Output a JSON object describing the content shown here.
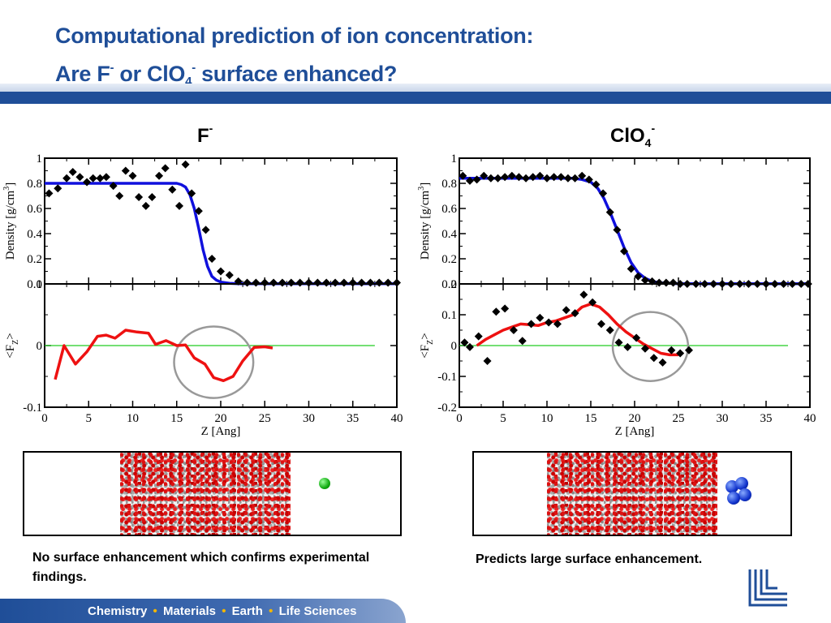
{
  "title": {
    "line1": "Computational prediction of ion concentration:",
    "line2_a": "Are F",
    "line2_sup1": "-",
    "line2_b": " or ClO",
    "line2_sub": "4",
    "line2_sup2": "-",
    "line2_c": " surface enhanced?"
  },
  "left_label": {
    "base": "F",
    "sup": "-"
  },
  "right_label": {
    "base": "ClO",
    "sub": "4",
    "sup": "-"
  },
  "captions": {
    "left": "No surface enhancement which confirms experimental findings.",
    "right": "Predicts large surface enhancement."
  },
  "footer": {
    "items": [
      "Chemistry",
      "Materials",
      "Earth",
      "Life Sciences"
    ],
    "separator": "•"
  },
  "colors": {
    "title": "#1f4e98",
    "band": "#1f4e98",
    "fit_line": "#1010dd",
    "force_line": "#ee1111",
    "zero_line": "#22cc22",
    "circle": "#999999",
    "marker": "#000000",
    "footer_dot": "#f2b600"
  },
  "icons": [
    "llnl-logo",
    "green-ion-sphere",
    "blue-perchlorate-cluster"
  ],
  "chart_data": [
    {
      "type": "scatter",
      "panel": "left-density",
      "ion": "F-",
      "xlabel": "",
      "ylabel": "Density [g/cm3]",
      "ylabel_base": "Density [g/cm",
      "ylabel_sup": "3",
      "ylabel_close": "]",
      "xlim": [
        0,
        40
      ],
      "ylim": [
        0,
        1
      ],
      "yticks": [
        0,
        0.2,
        0.4,
        0.6,
        0.8,
        1
      ],
      "ytick_labels": [
        "0",
        "0.2",
        "0.4",
        "0.6",
        "0.8",
        "1"
      ],
      "series": [
        {
          "kind": "points",
          "x": [
            0.5,
            1.5,
            2.5,
            3.2,
            4,
            4.8,
            5.5,
            6.3,
            7,
            7.8,
            8.5,
            9.2,
            10,
            10.7,
            11.5,
            12.2,
            13,
            13.7,
            14.5,
            15.3,
            16,
            16.7,
            17.5,
            18.3,
            19,
            20,
            21,
            22,
            23,
            24,
            25,
            26,
            27,
            28,
            29,
            30,
            31,
            32,
            33,
            34,
            35,
            36,
            37,
            38,
            39,
            40
          ],
          "y": [
            0.72,
            0.76,
            0.84,
            0.89,
            0.85,
            0.81,
            0.84,
            0.84,
            0.85,
            0.78,
            0.7,
            0.9,
            0.86,
            0.69,
            0.62,
            0.69,
            0.86,
            0.92,
            0.75,
            0.62,
            0.95,
            0.72,
            0.58,
            0.43,
            0.2,
            0.1,
            0.07,
            0.02,
            0.01,
            0.01,
            0.01,
            0.01,
            0.01,
            0.01,
            0.01,
            0.01,
            0.01,
            0.01,
            0.01,
            0.01,
            0.01,
            0.01,
            0.01,
            0.01,
            0.01,
            0.01
          ]
        },
        {
          "kind": "fit",
          "x": [
            0,
            15,
            15.5,
            16,
            16.5,
            17,
            17.5,
            18,
            18.5,
            19,
            19.5,
            20,
            21,
            22,
            25,
            30,
            40
          ],
          "y": [
            0.8,
            0.8,
            0.79,
            0.77,
            0.71,
            0.6,
            0.44,
            0.27,
            0.14,
            0.06,
            0.03,
            0.015,
            0.005,
            0.002,
            0.001,
            0.001,
            0.001
          ]
        }
      ]
    },
    {
      "type": "line",
      "panel": "left-force",
      "ion": "F-",
      "xlabel": "Z [Ang]",
      "ylabel": "<FZ>",
      "ylabel_base": "<F",
      "ylabel_sub": "Z",
      "ylabel_close": ">",
      "xlim": [
        0,
        40
      ],
      "ylim": [
        -0.1,
        0.1
      ],
      "yticks": [
        -0.1,
        0,
        0.1
      ],
      "ytick_labels": [
        "-0.1",
        "0",
        "0.1"
      ],
      "xticks": [
        0,
        5,
        10,
        15,
        20,
        25,
        30,
        35,
        40
      ],
      "xtick_labels": [
        "0",
        "5",
        "10",
        "15",
        "20",
        "25",
        "30",
        "35",
        "40"
      ],
      "series": [
        {
          "kind": "force",
          "x": [
            1.2,
            2.2,
            3.5,
            4.8,
            6,
            7,
            8,
            9.2,
            10.5,
            11.8,
            12.6,
            13.8,
            15,
            16,
            17,
            18.2,
            19.2,
            20.3,
            21.4,
            22.5,
            23.8,
            25,
            25.9
          ],
          "y": [
            -0.055,
            0,
            -0.03,
            -0.01,
            0.015,
            0.017,
            0.012,
            0.025,
            0.022,
            0.02,
            0.002,
            0.008,
            -0.0,
            0.001,
            -0.02,
            -0.03,
            -0.052,
            -0.057,
            -0.05,
            -0.025,
            -0.003,
            -0.002,
            -0.004
          ]
        },
        {
          "kind": "zero",
          "x": [
            0,
            37.5
          ],
          "y": [
            0,
            0
          ]
        }
      ],
      "circle": {
        "x": 19.2,
        "y": -0.027,
        "rx": 4.5,
        "ry": 0.058
      }
    },
    {
      "type": "scatter",
      "panel": "right-density",
      "ion": "ClO4-",
      "xlabel": "",
      "ylabel": "Density [g/cm3]",
      "ylabel_base": "Density [g/cm",
      "ylabel_sup": "3",
      "ylabel_close": "]",
      "xlim": [
        0,
        40
      ],
      "ylim": [
        0,
        1
      ],
      "yticks": [
        0,
        0.2,
        0.4,
        0.6,
        0.8,
        1
      ],
      "ytick_labels": [
        "0",
        "0.2",
        "0.4",
        "0.6",
        "0.8",
        "1"
      ],
      "series": [
        {
          "kind": "points",
          "x": [
            0.4,
            1.2,
            2,
            2.8,
            3.6,
            4.4,
            5.2,
            6,
            6.8,
            7.6,
            8.4,
            9.2,
            10,
            10.8,
            11.6,
            12.4,
            13.2,
            14,
            14.8,
            15.6,
            16.4,
            17.2,
            18,
            18.8,
            19.6,
            20.4,
            21.2,
            22,
            22.8,
            23.6,
            24.4,
            25.2,
            26,
            27,
            28,
            29,
            30,
            31,
            32,
            33,
            34,
            35,
            36,
            37,
            38,
            39,
            39.8
          ],
          "y": [
            0.86,
            0.82,
            0.83,
            0.86,
            0.84,
            0.84,
            0.85,
            0.86,
            0.85,
            0.84,
            0.85,
            0.86,
            0.84,
            0.85,
            0.85,
            0.84,
            0.84,
            0.86,
            0.83,
            0.79,
            0.72,
            0.57,
            0.43,
            0.26,
            0.12,
            0.06,
            0.03,
            0.02,
            0.01,
            0.01,
            0.01,
            0.0,
            0.0,
            0.0,
            0.0,
            0.0,
            0.0,
            0.0,
            0.0,
            0.0,
            0.0,
            0.0,
            0.0,
            0.0,
            0.0,
            0.0,
            0.0
          ]
        },
        {
          "kind": "fit",
          "x": [
            0,
            13,
            14,
            15,
            15.8,
            16.5,
            17.2,
            18,
            18.8,
            19.6,
            20.4,
            21.2,
            22,
            23,
            25,
            30,
            40
          ],
          "y": [
            0.84,
            0.84,
            0.83,
            0.81,
            0.76,
            0.68,
            0.57,
            0.43,
            0.29,
            0.17,
            0.09,
            0.045,
            0.02,
            0.008,
            0.002,
            0.001,
            0.001
          ]
        }
      ]
    },
    {
      "type": "line",
      "panel": "right-force",
      "ion": "ClO4-",
      "xlabel": "Z [Ang]",
      "ylabel": "<FZ>",
      "ylabel_base": "<F",
      "ylabel_sub": "Z",
      "ylabel_close": ">",
      "xlim": [
        0,
        40
      ],
      "ylim": [
        -0.2,
        0.2
      ],
      "yticks": [
        -0.2,
        -0.1,
        0,
        0.1,
        0.2
      ],
      "ytick_labels": [
        "-0.2",
        "-0.1",
        "0",
        "0.1",
        "0.2"
      ],
      "xticks": [
        0,
        5,
        10,
        15,
        20,
        25,
        30,
        35,
        40
      ],
      "xtick_labels": [
        "0",
        "5",
        "10",
        "15",
        "20",
        "25",
        "30",
        "35",
        "40"
      ],
      "series": [
        {
          "kind": "points",
          "x": [
            0.6,
            1.2,
            2.2,
            3.2,
            4.2,
            5.2,
            6.2,
            7.2,
            8.2,
            9.2,
            10.2,
            11.2,
            12.2,
            13.2,
            14.2,
            15.2,
            16.2,
            17.2,
            18.2,
            19.2,
            20.2,
            21.2,
            22.2,
            23.2,
            24.2,
            25.2,
            26.2
          ],
          "y": [
            0.01,
            -0.005,
            0.03,
            -0.05,
            0.11,
            0.12,
            0.05,
            0.015,
            0.07,
            0.09,
            0.075,
            0.07,
            0.115,
            0.105,
            0.165,
            0.14,
            0.07,
            0.05,
            0.01,
            -0.005,
            0.025,
            -0.01,
            -0.04,
            -0.055,
            -0.015,
            -0.025,
            -0.015
          ]
        },
        {
          "kind": "force",
          "x": [
            2,
            3,
            4,
            5,
            6,
            7,
            8,
            9,
            10,
            11,
            12,
            13,
            14,
            15,
            16,
            17,
            18,
            19,
            20,
            21,
            22,
            23,
            24,
            25
          ],
          "y": [
            0,
            0.02,
            0.035,
            0.05,
            0.06,
            0.07,
            0.068,
            0.065,
            0.075,
            0.08,
            0.09,
            0.1,
            0.125,
            0.135,
            0.125,
            0.1,
            0.07,
            0.045,
            0.025,
            0.005,
            -0.01,
            -0.025,
            -0.03,
            -0.03
          ]
        },
        {
          "kind": "zero",
          "x": [
            0,
            37.5
          ],
          "y": [
            0,
            0
          ]
        }
      ],
      "circle": {
        "x": 21.8,
        "y": -0.003,
        "rx": 4.3,
        "ry": 0.112
      }
    }
  ]
}
